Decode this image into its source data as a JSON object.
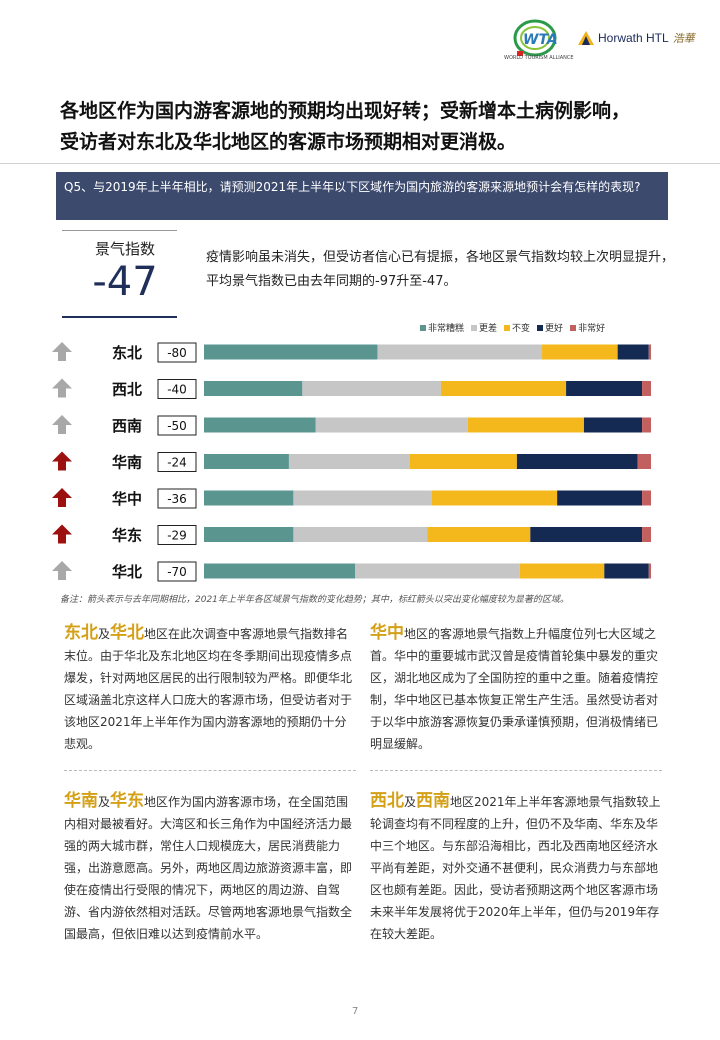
{
  "header": {
    "wta_logo_text": "WTA",
    "wta_caption": "WORLD TOURISM ALLIANCE",
    "horwath_text": "Horwath HTL",
    "horwath_cn": "浩華"
  },
  "title": {
    "line1": "各地区作为国内游客源地的预期均出现好转；受新增本土病例影响，",
    "line2": "受访者对东北及华北地区的客源市场预期相对更消极。"
  },
  "question": "Q5、与2019年上半年相比，请预测2021年上半年以下区域作为国内旅游的客源来源地预计会有怎样的表现?",
  "index": {
    "label": "景气指数",
    "value": "-47",
    "summary": "疫情影响虽未消失，但受访者信心已有提振，各地区景气指数均较上次明显提升，平均景气指数已由去年同期的-97升至-47。"
  },
  "colors": {
    "非常糟糕": "#5a9590",
    "更差": "#c6c6c6",
    "不变": "#f4b81c",
    "更好": "#142a52",
    "非常好": "#c26060",
    "arrow_gray": "#a8a8a8",
    "arrow_red": "#9c1010"
  },
  "chart_data": {
    "type": "bar",
    "orientation": "horizontal",
    "stacked": true,
    "percent": true,
    "legend_position": "top-right",
    "categories": [
      "东北",
      "西北",
      "西南",
      "华南",
      "华中",
      "华东",
      "华北"
    ],
    "index_values": [
      "-80",
      "-40",
      "-50",
      "-24",
      "-36",
      "-29",
      "-70"
    ],
    "arrow_colors": [
      "gray",
      "gray",
      "gray",
      "red",
      "red",
      "red",
      "gray"
    ],
    "series": [
      {
        "name": "非常糟糕",
        "values": [
          39,
          22,
          25,
          19,
          20,
          20,
          34
        ]
      },
      {
        "name": "更差",
        "values": [
          37,
          31,
          34,
          27,
          31,
          30,
          37
        ]
      },
      {
        "name": "不变",
        "values": [
          17,
          28,
          26,
          24,
          28,
          23,
          19
        ]
      },
      {
        "name": "更好",
        "values": [
          7,
          17,
          13,
          27,
          19,
          25,
          10
        ]
      },
      {
        "name": "非常好",
        "values": [
          0.5,
          2,
          2,
          3,
          2,
          2,
          0.5
        ]
      }
    ]
  },
  "chart_note": "备注：箭头表示与去年同期相比，2021年上半年各区域景气指数的变化趋势；其中，标红箭头以突出变化幅度较为显著的区域。",
  "blocks": {
    "tl": {
      "hl1": "东北",
      "join": "及",
      "hl2": "华北",
      "text": "地区在此次调查中客源地景气指数排名末位。由于华北及东北地区均在冬季期间出现疫情多点爆发，针对两地区居民的出行限制较为严格。即便华北区域涵盖北京这样人口庞大的客源市场，但受访者对于该地区2021年上半年作为国内游客源地的预期仍十分悲观。"
    },
    "tr": {
      "hl1": "华中",
      "text": "地区的客源地景气指数上升幅度位列七大区域之首。华中的重要城市武汉曾是疫情首轮集中暴发的重灾区，湖北地区成为了全国防控的重中之重。随着疫情控制，华中地区已基本恢复正常生产生活。虽然受访者对于以华中旅游客源恢复仍秉承谨慎预期，但消极情绪已明显缓解。"
    },
    "bl": {
      "hl1": "华南",
      "join": "及",
      "hl2": "华东",
      "text": "地区作为国内游客源市场，在全国范围内相对最被看好。大湾区和长三角作为中国经济活力最强的两大城市群，常住人口规模庞大，居民消费能力强，出游意愿高。另外，两地区周边旅游资源丰富，即使在疫情出行受限的情况下，两地区的周边游、自驾游、省内游依然相对活跃。尽管两地客源地景气指数全国最高，但依旧难以达到疫情前水平。"
    },
    "br": {
      "hl1": "西北",
      "join": "及",
      "hl2": "西南",
      "text": "地区2021年上半年客源地景气指数较上轮调查均有不同程度的上升，但仍不及华南、华东及华中三个地区。与东部沿海相比，西北及西南地区经济水平尚有差距，对外交通不甚便利，民众消费力与东部地区也颇有差距。因此，受访者预期这两个地区客源市场未来半年发展将优于2020年上半年，但仍与2019年存在较大差距。"
    }
  },
  "page_number": "7"
}
